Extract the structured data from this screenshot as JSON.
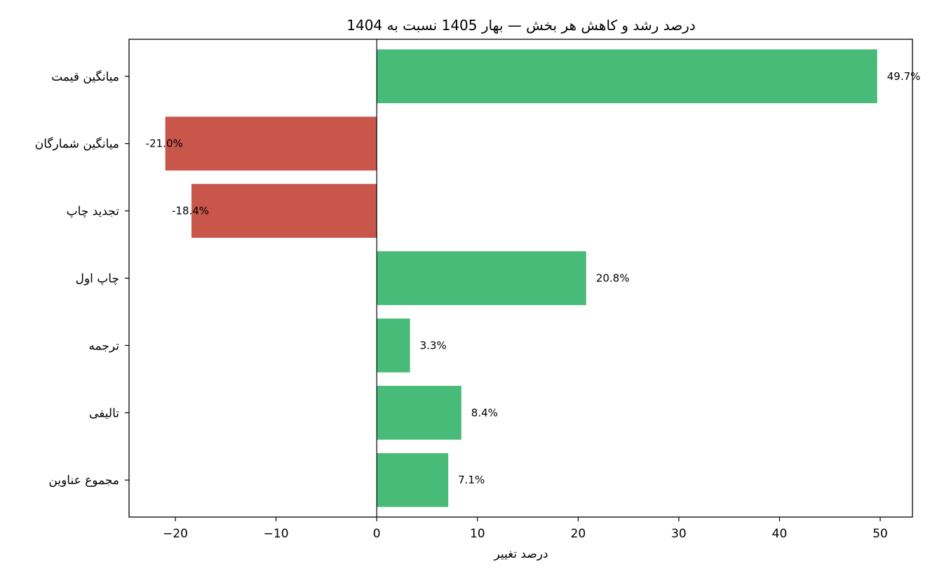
{
  "chart_data": {
    "type": "bar",
    "orientation": "horizontal",
    "title": "درصد رشد و کاهش هر بخش — بهار 1405 نسبت به 1404",
    "xlabel": "درصد تغییر",
    "ylabel": "",
    "categories": [
      "میانگین قیمت",
      "میانگین شمارگان",
      "تجدید چاپ",
      "چاپ اول",
      "ترجمه",
      "تالیفی",
      "مجموع عناوین"
    ],
    "values": [
      49.7,
      -21.0,
      -18.4,
      20.8,
      3.3,
      8.4,
      7.1
    ],
    "value_labels": [
      "49.7%",
      "-21.0%",
      "-18.4%",
      "20.8%",
      "3.3%",
      "8.4%",
      "7.1%"
    ],
    "xlim": [
      -24.6,
      53.2
    ],
    "xticks": [
      -20,
      -10,
      0,
      10,
      20,
      30,
      40,
      50
    ],
    "xtick_labels": [
      "−20",
      "−10",
      "0",
      "10",
      "20",
      "30",
      "40",
      "50"
    ],
    "grid": false,
    "zero_line": true,
    "colors": {
      "positive": "#48BB78",
      "negative": "#C8564B",
      "axis": "#000000",
      "zero_line": "#000000"
    }
  }
}
